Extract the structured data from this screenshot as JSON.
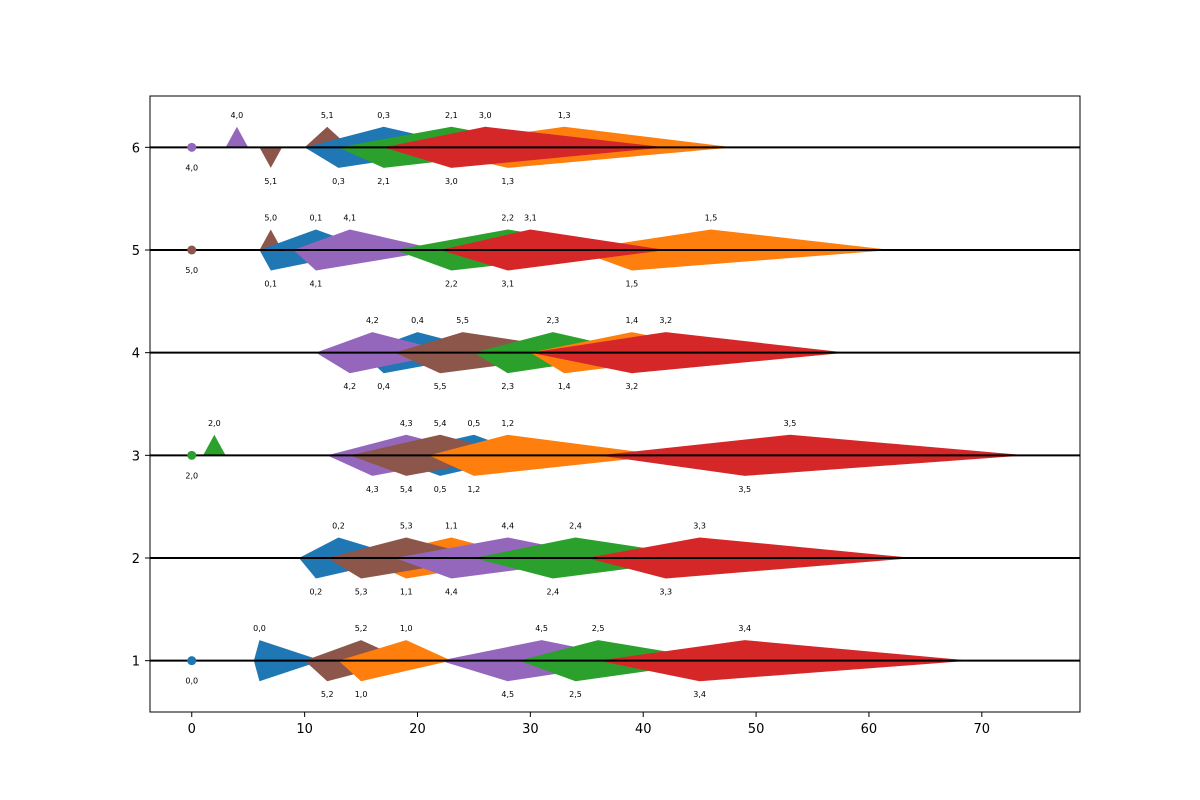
{
  "chart_data": {
    "type": "timeline-diamonds",
    "title": "",
    "xlabel": "",
    "ylabel": "",
    "xlim": [
      -3.7,
      78.7
    ],
    "ylim": [
      0.5,
      6.5
    ],
    "x_ticks": [
      0,
      10,
      20,
      30,
      40,
      50,
      60,
      70
    ],
    "y_ticks": [
      1,
      2,
      3,
      4,
      5,
      6
    ],
    "legend": "none",
    "colors": [
      "#1f77b4",
      "#ff7f0e",
      "#2ca02c",
      "#d62728",
      "#9467bd",
      "#8c564b"
    ],
    "series_color_index_by_first_number": true,
    "points": [
      {
        "label": "0,0",
        "row": 1,
        "x": 0,
        "color_index": 0
      },
      {
        "label": "2,0",
        "row": 3,
        "x": 0,
        "color_index": 2
      },
      {
        "label": "5,0",
        "row": 5,
        "x": 0,
        "color_index": 5
      },
      {
        "label": "4,0",
        "row": 6,
        "x": 0,
        "color_index": 4
      }
    ],
    "shapes": [
      {
        "row": 1,
        "color_index": 0,
        "start": 5.5,
        "peak": 6,
        "end": 11.5,
        "top_label": "0,0",
        "bottom_label": null
      },
      {
        "row": 1,
        "color_index": 5,
        "start": 10,
        "peak": 15,
        "end": 19,
        "top_label": "5,2",
        "bottom_label": "5,2",
        "bottom_peak": 12
      },
      {
        "row": 1,
        "color_index": 1,
        "start": 13,
        "peak": 19,
        "end": 23,
        "top_label": "1,0",
        "bottom_label": "1,0",
        "bottom_peak": 15
      },
      {
        "row": 1,
        "color_index": 4,
        "start": 22,
        "peak": 31,
        "end": 40,
        "top_label": "4,5",
        "bottom_label": "4,5",
        "bottom_peak": 28
      },
      {
        "row": 1,
        "color_index": 2,
        "start": 29,
        "peak": 36,
        "end": 47,
        "top_label": "2,5",
        "bottom_label": "2,5",
        "bottom_peak": 34
      },
      {
        "row": 1,
        "color_index": 3,
        "start": 36,
        "peak": 49,
        "end": 69,
        "top_label": "3,4",
        "bottom_label": "3,4",
        "bottom_peak": 45
      },
      {
        "row": 2,
        "color_index": 0,
        "start": 9.5,
        "peak": 13,
        "end": 19,
        "top_label": "0,2",
        "bottom_label": "0,2",
        "bottom_peak": 11
      },
      {
        "row": 2,
        "color_index": 1,
        "start": 15,
        "peak": 23,
        "end": 30,
        "top_label": "1,1",
        "bottom_label": "1,1",
        "bottom_peak": 19
      },
      {
        "row": 2,
        "color_index": 5,
        "start": 12,
        "peak": 19,
        "end": 26,
        "top_label": "5,3",
        "bottom_label": "5,3",
        "bottom_peak": 15
      },
      {
        "row": 2,
        "color_index": 4,
        "start": 18,
        "peak": 28,
        "end": 37,
        "top_label": "4,4",
        "bottom_label": "4,4",
        "bottom_peak": 23
      },
      {
        "row": 2,
        "color_index": 2,
        "start": 25,
        "peak": 34,
        "end": 46,
        "top_label": "2,4",
        "bottom_label": "2,4",
        "bottom_peak": 32
      },
      {
        "row": 2,
        "color_index": 3,
        "start": 35,
        "peak": 45,
        "end": 64,
        "top_label": "3,3",
        "bottom_label": "3,3",
        "bottom_peak": 42
      },
      {
        "row": 3,
        "color_index": 2,
        "start": 1,
        "peak": 2,
        "end": 3,
        "top_label": "2,0",
        "bottom_label": null,
        "triangle_up": true
      },
      {
        "row": 3,
        "color_index": 0,
        "start": 17,
        "peak": 25,
        "end": 30,
        "top_label": "0,5",
        "bottom_label": "0,5",
        "bottom_peak": 22
      },
      {
        "row": 3,
        "color_index": 4,
        "start": 12,
        "peak": 19,
        "end": 26,
        "top_label": "4,3",
        "bottom_label": "4,3",
        "bottom_peak": 16
      },
      {
        "row": 3,
        "color_index": 5,
        "start": 14,
        "peak": 22,
        "end": 29,
        "top_label": "5,4",
        "bottom_label": "5,4",
        "bottom_peak": 19
      },
      {
        "row": 3,
        "color_index": 1,
        "start": 21,
        "peak": 28,
        "end": 42,
        "top_label": "1,2",
        "bottom_label": "1,2",
        "bottom_peak": 25
      },
      {
        "row": 3,
        "color_index": 3,
        "start": 36,
        "peak": 53,
        "end": 74,
        "top_label": "3,5",
        "bottom_label": "3,5",
        "bottom_peak": 49
      },
      {
        "row": 4,
        "color_index": 0,
        "start": 15,
        "peak": 20,
        "end": 27,
        "top_label": "0,4",
        "bottom_label": "0,4",
        "bottom_peak": 17
      },
      {
        "row": 4,
        "color_index": 4,
        "start": 11,
        "peak": 16,
        "end": 23,
        "top_label": "4,2",
        "bottom_label": "4,2",
        "bottom_peak": 14
      },
      {
        "row": 4,
        "color_index": 5,
        "start": 18,
        "peak": 24,
        "end": 36,
        "top_label": "5,5",
        "bottom_label": "5,5",
        "bottom_peak": 22
      },
      {
        "row": 4,
        "color_index": 2,
        "start": 25,
        "peak": 32,
        "end": 40,
        "top_label": "2,3",
        "bottom_label": "2,3",
        "bottom_peak": 28
      },
      {
        "row": 4,
        "color_index": 1,
        "start": 30,
        "peak": 39,
        "end": 48,
        "top_label": "1,4",
        "bottom_label": "1,4",
        "bottom_peak": 33
      },
      {
        "row": 4,
        "color_index": 3,
        "start": 30,
        "peak": 42,
        "end": 58,
        "top_label": "3,2",
        "bottom_label": "3,2",
        "bottom_peak": 39
      },
      {
        "row": 5,
        "color_index": 5,
        "start": 6,
        "peak": 7,
        "end": 8,
        "top_label": "5,0",
        "bottom_label": null,
        "triangle_up": true
      },
      {
        "row": 5,
        "color_index": 0,
        "start": 6,
        "peak": 11,
        "end": 16,
        "top_label": "0,1",
        "bottom_label": "0,1",
        "bottom_peak": 7
      },
      {
        "row": 5,
        "color_index": 4,
        "start": 9,
        "peak": 14,
        "end": 22,
        "top_label": "4,1",
        "bottom_label": "4,1",
        "bottom_peak": 11
      },
      {
        "row": 5,
        "color_index": 2,
        "start": 18,
        "peak": 28,
        "end": 39,
        "top_label": "2,2",
        "bottom_label": "2,2",
        "bottom_peak": 23
      },
      {
        "row": 5,
        "color_index": 1,
        "start": 34,
        "peak": 46,
        "end": 62,
        "top_label": "1,5",
        "bottom_label": "1,5",
        "bottom_peak": 39
      },
      {
        "row": 5,
        "color_index": 3,
        "start": 22,
        "peak": 30,
        "end": 42,
        "top_label": "3,1",
        "bottom_label": "3,1",
        "bottom_peak": 28
      },
      {
        "row": 6,
        "color_index": 4,
        "start": 3,
        "peak": 4,
        "end": 5,
        "top_label": "4,0",
        "bottom_label": null,
        "triangle_up": true
      },
      {
        "row": 6,
        "color_index": 5,
        "start": 6,
        "peak": 7,
        "end": 8,
        "top_label": null,
        "bottom_label": "5,1",
        "triangle_down": true
      },
      {
        "row": 6,
        "color_index": 5,
        "start": 10,
        "peak": 12,
        "end": 14,
        "top_label": "5,1",
        "bottom_label": null,
        "triangle_up": true
      },
      {
        "row": 6,
        "color_index": 0,
        "start": 10,
        "peak": 17,
        "end": 25,
        "top_label": "0,3",
        "bottom_label": "0,3",
        "bottom_peak": 13
      },
      {
        "row": 6,
        "color_index": 2,
        "start": 13,
        "peak": 23,
        "end": 33,
        "top_label": "2,1",
        "bottom_label": "2,1",
        "bottom_peak": 17
      },
      {
        "row": 6,
        "color_index": 1,
        "start": 20,
        "peak": 33,
        "end": 48,
        "top_label": "1,3",
        "bottom_label": "1,3",
        "bottom_peak": 28
      },
      {
        "row": 6,
        "color_index": 3,
        "start": 17,
        "peak": 26,
        "end": 42,
        "top_label": "3,0",
        "bottom_label": "3,0",
        "bottom_peak": 23
      }
    ]
  }
}
